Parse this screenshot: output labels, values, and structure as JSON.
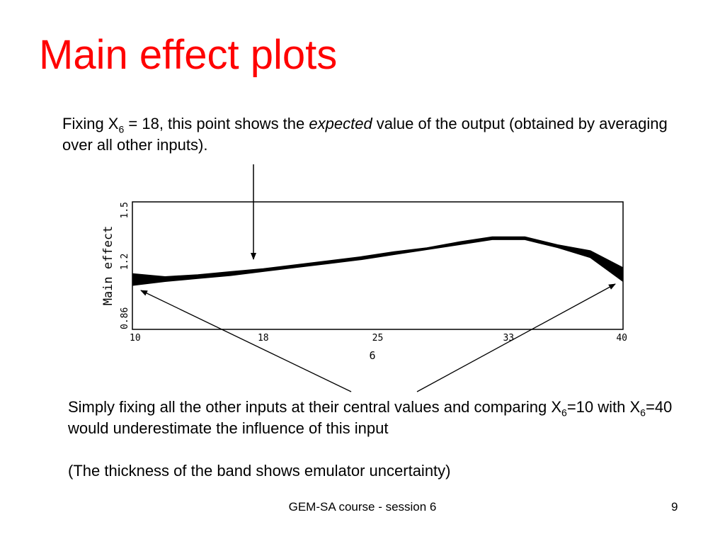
{
  "slide": {
    "title": "Main effect plots",
    "callout_top": {
      "part1": "Fixing X",
      "sub": "6",
      "part2": " = 18, this point shows the ",
      "emph": "expected",
      "part3": " value of the output (obtained by averaging over all other inputs)."
    },
    "callout_bottom": {
      "part1": "Simply fixing all the other inputs at their central values and comparing X",
      "sub1": "6",
      "part2": "=10 with X",
      "sub2": "6",
      "part3": "=40 would underestimate the influence of this input"
    },
    "note": "(The thickness of the band shows emulator uncertainty)",
    "footer": "GEM-SA course - session 6",
    "page_number": "9"
  },
  "chart_data": {
    "type": "area",
    "xlabel": "6",
    "ylabel": "Main effect",
    "xlim": [
      10,
      40
    ],
    "ylim": [
      0.86,
      1.5
    ],
    "x_ticks": [
      "10",
      "18",
      "25",
      "33",
      "40"
    ],
    "y_ticks": [
      "0.86",
      "1.2",
      "1.5"
    ],
    "grid": false,
    "x": [
      10,
      12,
      14,
      16,
      18,
      20,
      22,
      24,
      26,
      28,
      30,
      32,
      34,
      36,
      38,
      40
    ],
    "lower": [
      1.08,
      1.1,
      1.115,
      1.13,
      1.15,
      1.17,
      1.19,
      1.21,
      1.235,
      1.26,
      1.285,
      1.31,
      1.31,
      1.27,
      1.22,
      1.1
    ],
    "upper": [
      1.14,
      1.125,
      1.135,
      1.15,
      1.165,
      1.185,
      1.205,
      1.225,
      1.25,
      1.27,
      1.3,
      1.325,
      1.325,
      1.285,
      1.255,
      1.17
    ]
  }
}
